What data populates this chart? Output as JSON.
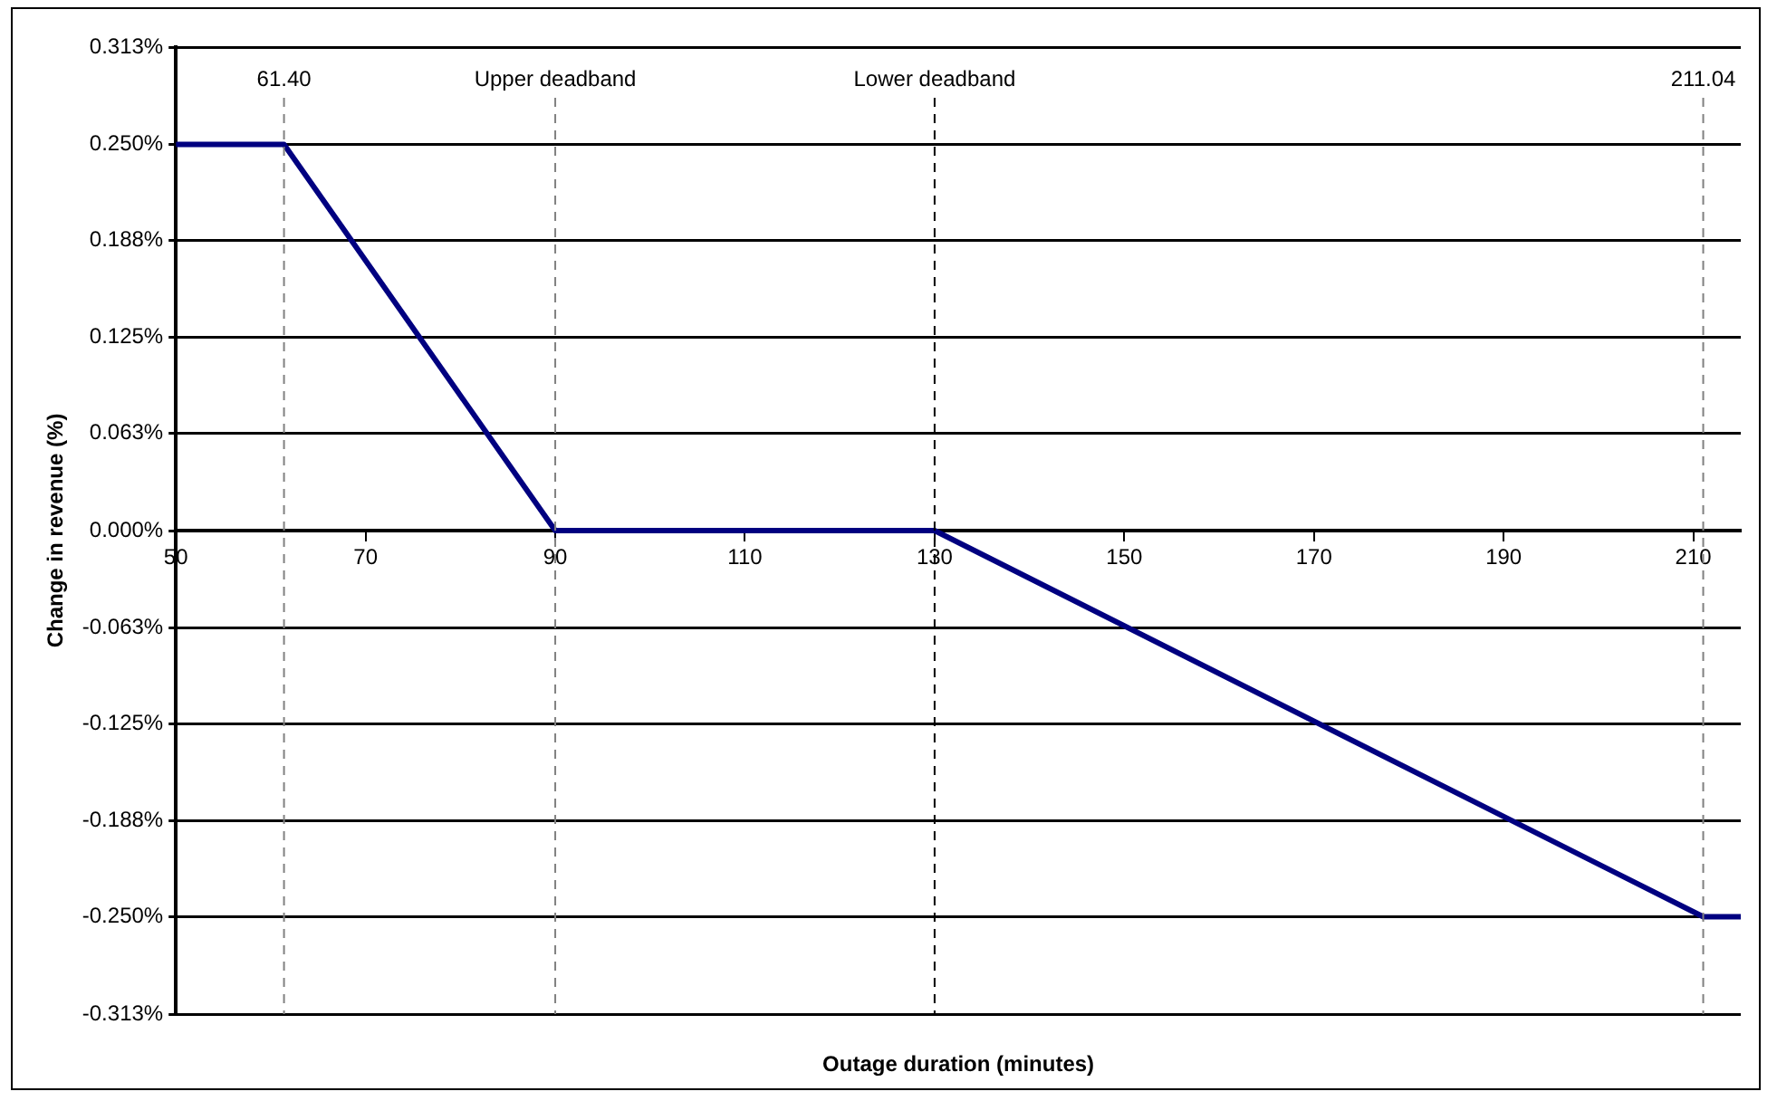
{
  "chart_data": {
    "type": "line",
    "xlabel": "Outage duration (minutes)",
    "ylabel": "Change in revenue (%)",
    "x": [
      50,
      61.4,
      90,
      130,
      211.04,
      215
    ],
    "series": [
      {
        "color": "#000080",
        "values": [
          0.25,
          0.25,
          0,
          0,
          -0.25,
          -0.25
        ]
      }
    ],
    "xlim": [
      50,
      215
    ],
    "xticks": [
      50,
      70,
      90,
      110,
      130,
      150,
      170,
      190,
      210
    ],
    "ylim": [
      -0.313,
      0.313
    ],
    "yticks": [
      {
        "value": 0.313,
        "label": "0.313%"
      },
      {
        "value": 0.25,
        "label": "0.250%"
      },
      {
        "value": 0.188,
        "label": "0.188%"
      },
      {
        "value": 0.125,
        "label": "0.125%"
      },
      {
        "value": 0.063,
        "label": "0.063%"
      },
      {
        "value": 0,
        "label": "0.000%"
      },
      {
        "value": -0.063,
        "label": "-0.063%"
      },
      {
        "value": -0.125,
        "label": "-0.125%"
      },
      {
        "value": -0.188,
        "label": "-0.188%"
      },
      {
        "value": -0.25,
        "label": "-0.250%"
      },
      {
        "value": -0.313,
        "label": "-0.313%"
      }
    ],
    "ref_lines": [
      {
        "axis": "x",
        "value": 61.4,
        "label": "61.40",
        "line_style": "dashed",
        "color": "#808080"
      },
      {
        "axis": "x",
        "value": 90,
        "label": "Upper deadband",
        "line_style": "dashed",
        "color": "#808080"
      },
      {
        "axis": "x",
        "value": 130,
        "label": "Lower deadband",
        "line_style": "dashed",
        "color": "#000000"
      },
      {
        "axis": "x",
        "value": 211.04,
        "label": "211.04",
        "line_style": "dashed",
        "color": "#808080"
      }
    ],
    "grid": "y",
    "legend": false,
    "marker": "none",
    "line_style": "solid"
  }
}
